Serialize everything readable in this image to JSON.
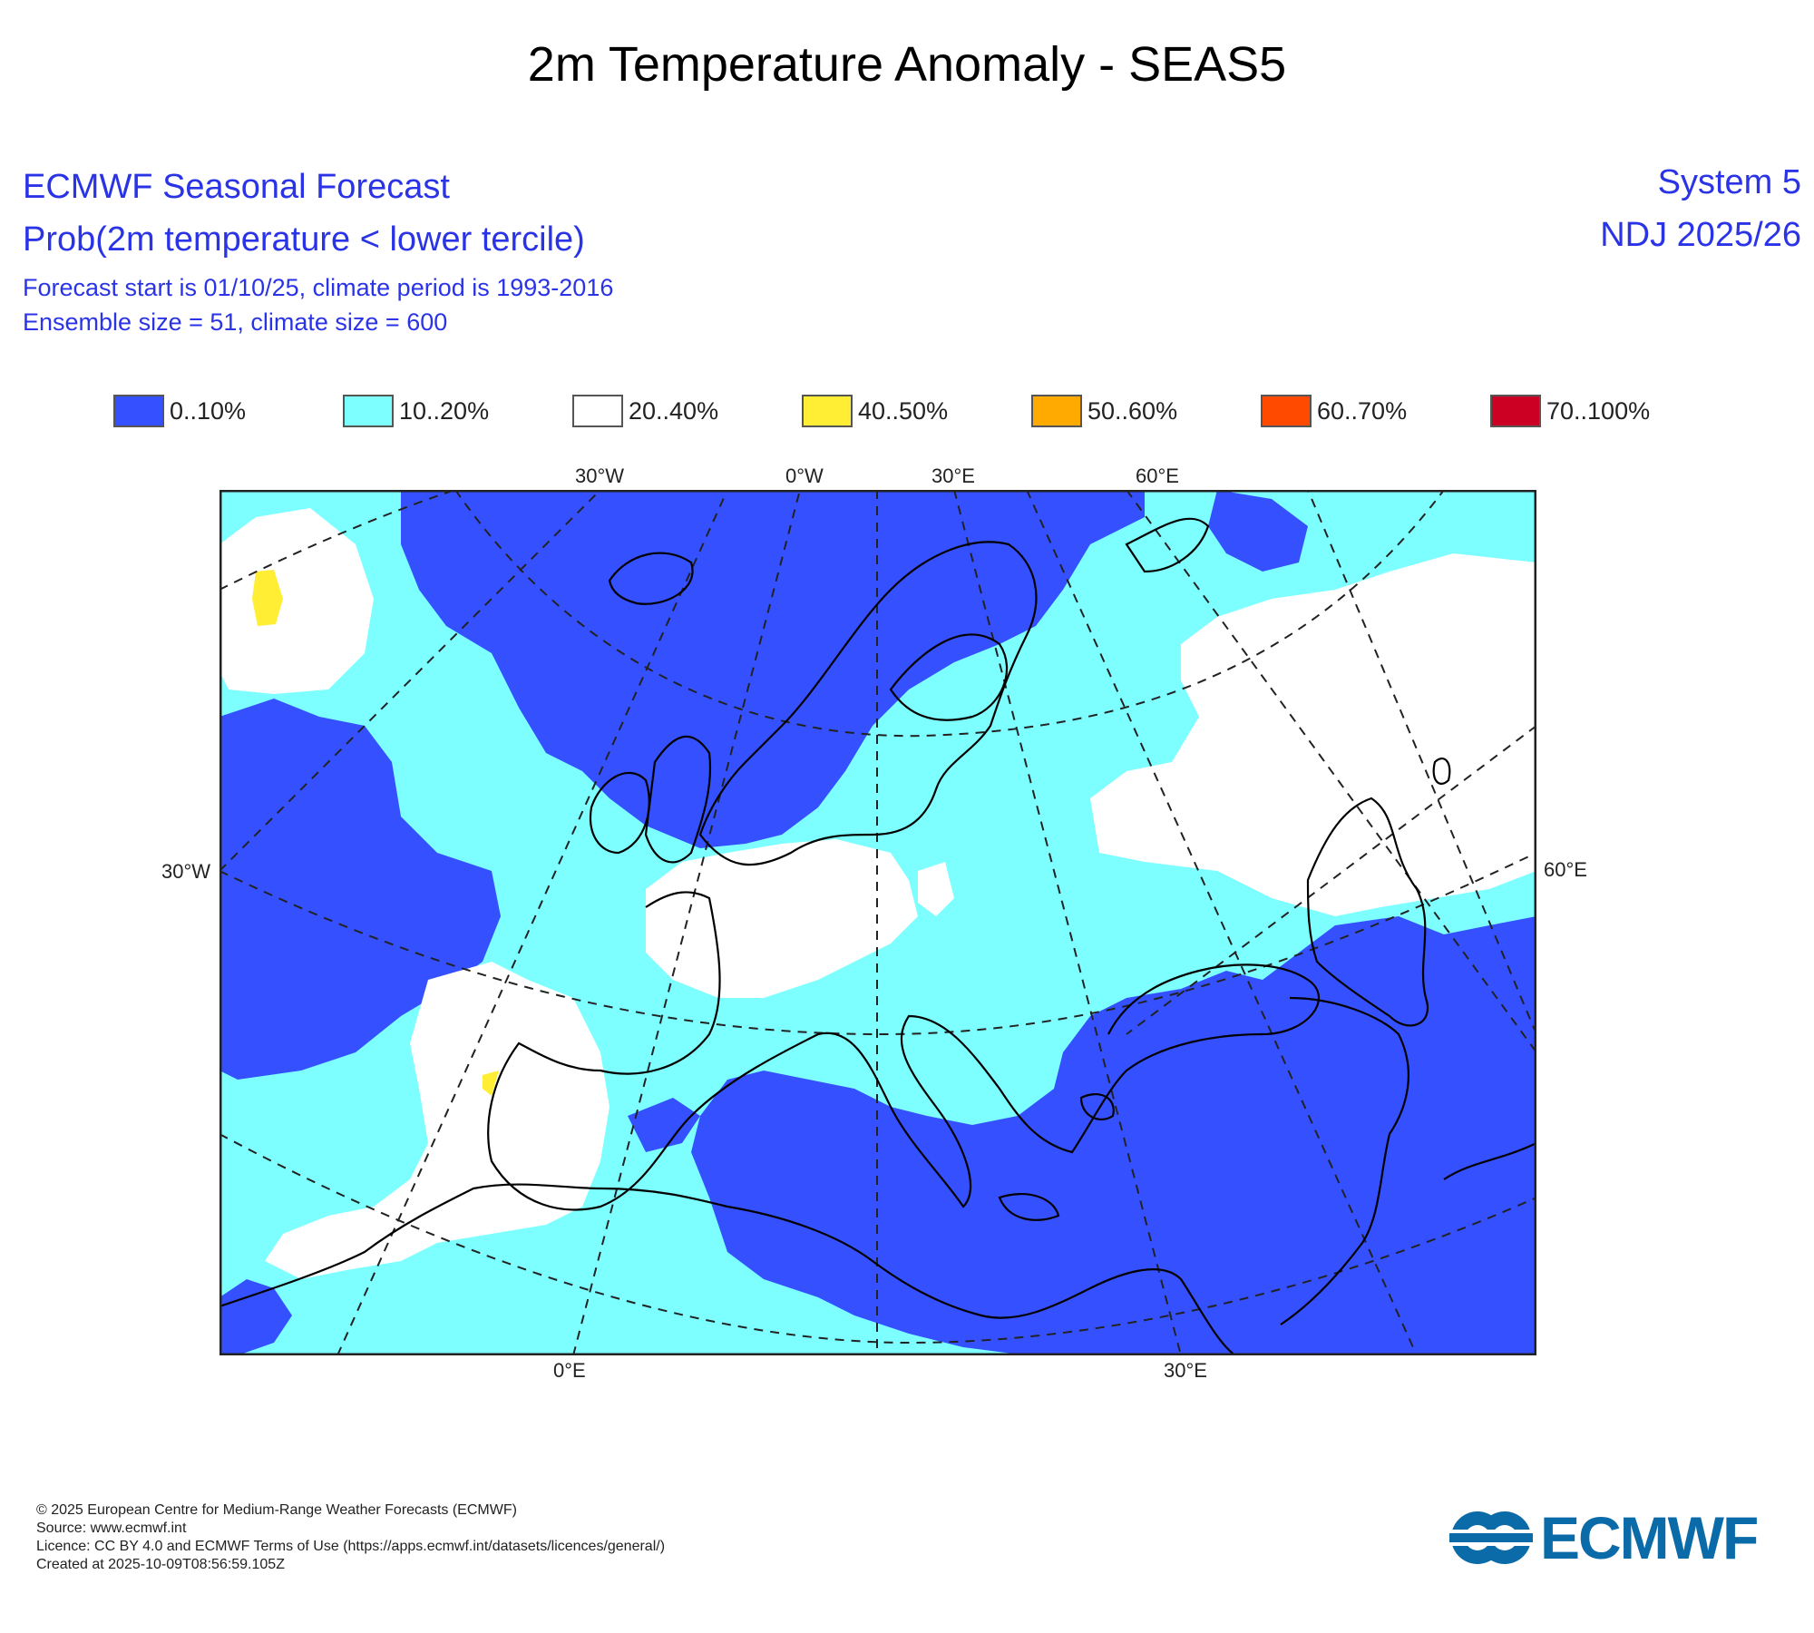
{
  "title": "2m Temperature Anomaly - SEAS5",
  "header": {
    "org_title": "ECMWF Seasonal Forecast",
    "product": "Prob(2m temperature < lower tercile)",
    "forecast_info": "Forecast start is 01/10/25, climate period is 1993-2016",
    "ensemble_info": "Ensemble size = 51, climate size = 600",
    "system": "System 5",
    "season": "NDJ 2025/26"
  },
  "legend": [
    {
      "label": "0..10%",
      "color": "#3550ff"
    },
    {
      "label": "10..20%",
      "color": "#7dffff"
    },
    {
      "label": "20..40%",
      "color": "#ffffff"
    },
    {
      "label": "40..50%",
      "color": "#ffee33"
    },
    {
      "label": "50..60%",
      "color": "#ffaa00"
    },
    {
      "label": "60..70%",
      "color": "#ff4a00"
    },
    {
      "label": "70..100%",
      "color": "#cc0022"
    }
  ],
  "map": {
    "top_labels": [
      "30°W",
      "0°W",
      "30°E",
      "60°E"
    ],
    "bottom_labels": [
      "0°E",
      "30°E"
    ],
    "left_label": "30°W",
    "right_label": "60°E"
  },
  "footer": {
    "copyright": "© 2025 European Centre for Medium-Range Weather Forecasts (ECMWF)",
    "source": "Source: www.ecmwf.int",
    "licence": "Licence: CC BY 4.0 and ECMWF Terms of Use (https://apps.ecmwf.int/datasets/licences/general/)",
    "created": "Created at 2025-10-09T08:56:59.105Z"
  },
  "logo_text": "ECMWF"
}
